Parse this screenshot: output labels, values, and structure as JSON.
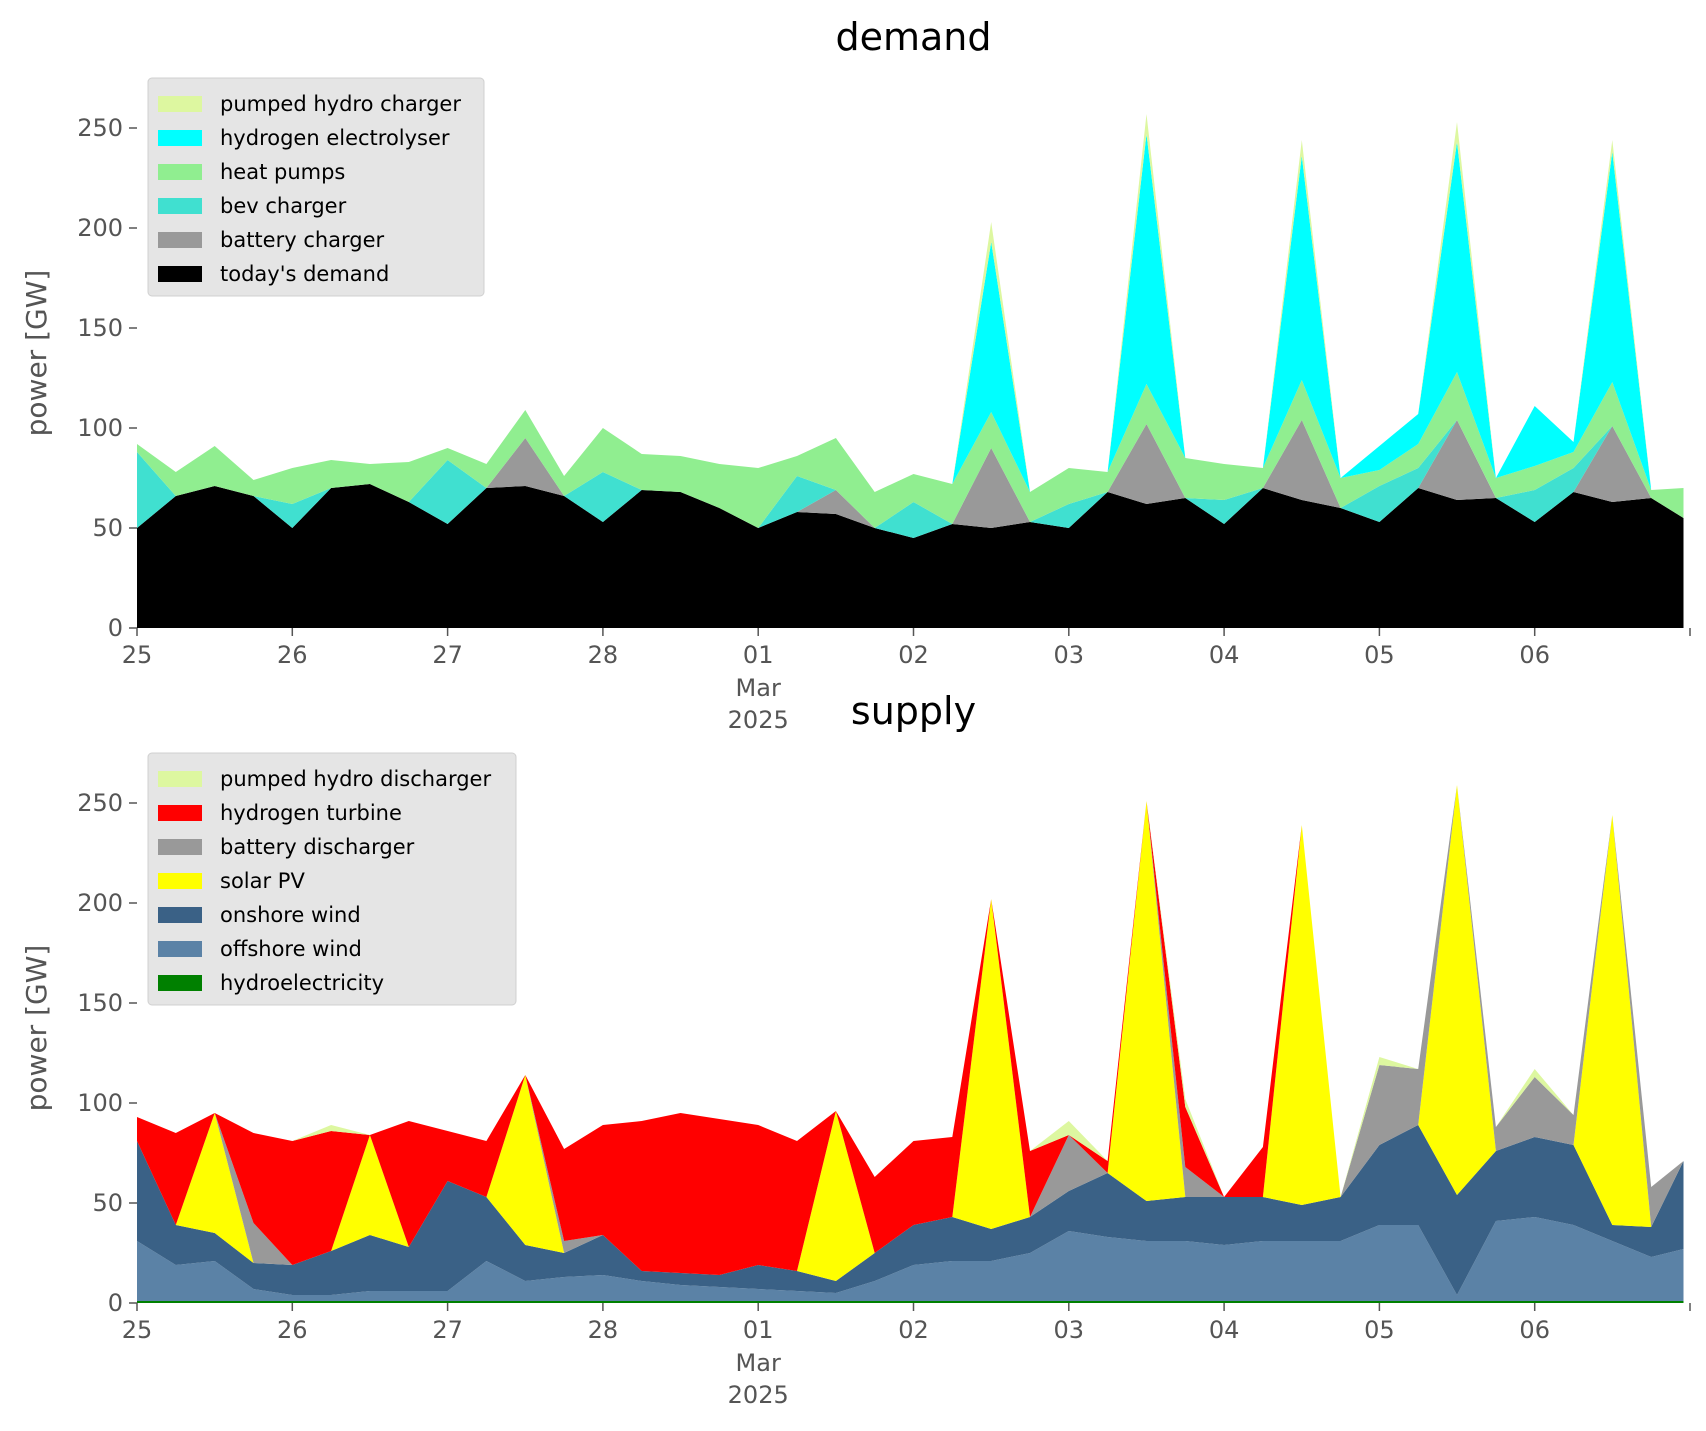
{
  "chart_data": [
    {
      "type": "area",
      "stacked": true,
      "title": "demand",
      "ylabel": "power [GW]",
      "xlabel": "",
      "ylim": [
        0,
        275
      ],
      "yticks": [
        0,
        50,
        100,
        150,
        200,
        250
      ],
      "xlim": [
        "2025-02-25",
        "2025-03-07"
      ],
      "xticks": [
        {
          "date": "2025-02-25",
          "label": "25"
        },
        {
          "date": "2025-02-26",
          "label": "26"
        },
        {
          "date": "2025-02-27",
          "label": "27"
        },
        {
          "date": "2025-02-28",
          "label": "28"
        },
        {
          "date": "2025-03-01",
          "label": "01",
          "sublabel": "Mar",
          "sublabel2": "2025"
        },
        {
          "date": "2025-03-02",
          "label": "02"
        },
        {
          "date": "2025-03-03",
          "label": "03"
        },
        {
          "date": "2025-03-04",
          "label": "04"
        },
        {
          "date": "2025-03-05",
          "label": "05"
        },
        {
          "date": "2025-03-06",
          "label": "06"
        }
      ],
      "legend_position": "top-left",
      "x": [
        "2025-02-25 00:00",
        "2025-02-25 06:00",
        "2025-02-25 12:00",
        "2025-02-25 18:00",
        "2025-02-26 00:00",
        "2025-02-26 06:00",
        "2025-02-26 12:00",
        "2025-02-26 18:00",
        "2025-02-27 00:00",
        "2025-02-27 06:00",
        "2025-02-27 12:00",
        "2025-02-27 18:00",
        "2025-02-28 00:00",
        "2025-02-28 06:00",
        "2025-02-28 12:00",
        "2025-02-28 18:00",
        "2025-03-01 00:00",
        "2025-03-01 06:00",
        "2025-03-01 12:00",
        "2025-03-01 18:00",
        "2025-03-02 00:00",
        "2025-03-02 06:00",
        "2025-03-02 12:00",
        "2025-03-02 18:00",
        "2025-03-03 00:00",
        "2025-03-03 06:00",
        "2025-03-03 12:00",
        "2025-03-03 18:00",
        "2025-03-04 00:00",
        "2025-03-04 06:00",
        "2025-03-04 12:00",
        "2025-03-04 18:00",
        "2025-03-05 00:00",
        "2025-03-05 06:00",
        "2025-03-05 12:00",
        "2025-03-05 18:00",
        "2025-03-06 00:00",
        "2025-03-06 06:00",
        "2025-03-06 12:00",
        "2025-03-06 18:00",
        "2025-03-06 23:00"
      ],
      "series": [
        {
          "name": "today's demand",
          "color": "#000000",
          "values": [
            50,
            66,
            71,
            66,
            50,
            70,
            72,
            63,
            52,
            70,
            71,
            66,
            53,
            69,
            68,
            60,
            50,
            58,
            57,
            50,
            45,
            52,
            50,
            53,
            50,
            68,
            62,
            65,
            52,
            70,
            64,
            60,
            53,
            70,
            64,
            65,
            53,
            68,
            63,
            65,
            55
          ]
        },
        {
          "name": "battery charger",
          "color": "#999999",
          "values": [
            0,
            0,
            0,
            0,
            0,
            0,
            0,
            0,
            0,
            0,
            24,
            0,
            0,
            0,
            0,
            0,
            0,
            0,
            12,
            0,
            0,
            0,
            40,
            0,
            0,
            0,
            40,
            0,
            0,
            0,
            40,
            0,
            0,
            0,
            40,
            0,
            0,
            0,
            38,
            0,
            0
          ]
        },
        {
          "name": "bev charger",
          "color": "#40e0d0",
          "values": [
            38,
            0,
            0,
            0,
            12,
            0,
            0,
            0,
            32,
            0,
            0,
            0,
            25,
            0,
            0,
            0,
            0,
            18,
            0,
            0,
            18,
            0,
            0,
            0,
            12,
            0,
            0,
            0,
            12,
            0,
            0,
            0,
            18,
            10,
            0,
            0,
            16,
            12,
            0,
            0,
            0
          ]
        },
        {
          "name": "heat pumps",
          "color": "#90ee90",
          "values": [
            4,
            12,
            20,
            8,
            18,
            14,
            10,
            20,
            6,
            12,
            14,
            10,
            22,
            18,
            18,
            22,
            30,
            10,
            26,
            18,
            14,
            20,
            18,
            15,
            18,
            10,
            20,
            20,
            18,
            10,
            20,
            15,
            8,
            12,
            24,
            10,
            12,
            8,
            22,
            4,
            15
          ]
        },
        {
          "name": "hydrogen electrolyser",
          "color": "#00ffff",
          "values": [
            0,
            0,
            0,
            0,
            0,
            0,
            0,
            0,
            0,
            0,
            0,
            0,
            0,
            0,
            0,
            0,
            0,
            0,
            0,
            0,
            0,
            0,
            85,
            0,
            0,
            0,
            125,
            0,
            0,
            0,
            112,
            0,
            12,
            15,
            115,
            0,
            30,
            5,
            115,
            0,
            0
          ]
        },
        {
          "name": "pumped hydro charger",
          "color": "#ddf7a0",
          "values": [
            0,
            0,
            0,
            0,
            0,
            0,
            0,
            0,
            0,
            0,
            0,
            0,
            0,
            0,
            0,
            0,
            0,
            0,
            0,
            0,
            0,
            0,
            10,
            0,
            0,
            0,
            10,
            0,
            0,
            0,
            8,
            0,
            0,
            0,
            10,
            0,
            0,
            0,
            6,
            0,
            0
          ]
        }
      ],
      "legend_order": [
        "pumped hydro charger",
        "hydrogen electrolyser",
        "heat pumps",
        "bev charger",
        "battery charger",
        "today's demand"
      ]
    },
    {
      "type": "area",
      "stacked": true,
      "title": "supply",
      "ylabel": "power [GW]",
      "xlabel": "",
      "ylim": [
        0,
        275
      ],
      "yticks": [
        0,
        50,
        100,
        150,
        200,
        250
      ],
      "xlim": [
        "2025-02-25",
        "2025-03-07"
      ],
      "xticks": [
        {
          "date": "2025-02-25",
          "label": "25"
        },
        {
          "date": "2025-02-26",
          "label": "26"
        },
        {
          "date": "2025-02-27",
          "label": "27"
        },
        {
          "date": "2025-02-28",
          "label": "28"
        },
        {
          "date": "2025-03-01",
          "label": "01",
          "sublabel": "Mar",
          "sublabel2": "2025"
        },
        {
          "date": "2025-03-02",
          "label": "02"
        },
        {
          "date": "2025-03-03",
          "label": "03"
        },
        {
          "date": "2025-03-04",
          "label": "04"
        },
        {
          "date": "2025-03-05",
          "label": "05"
        },
        {
          "date": "2025-03-06",
          "label": "06"
        }
      ],
      "legend_position": "top-left",
      "x": [
        "2025-02-25 00:00",
        "2025-02-25 06:00",
        "2025-02-25 12:00",
        "2025-02-25 18:00",
        "2025-02-26 00:00",
        "2025-02-26 06:00",
        "2025-02-26 12:00",
        "2025-02-26 18:00",
        "2025-02-27 00:00",
        "2025-02-27 06:00",
        "2025-02-27 12:00",
        "2025-02-27 18:00",
        "2025-02-28 00:00",
        "2025-02-28 06:00",
        "2025-02-28 12:00",
        "2025-02-28 18:00",
        "2025-03-01 00:00",
        "2025-03-01 06:00",
        "2025-03-01 12:00",
        "2025-03-01 18:00",
        "2025-03-02 00:00",
        "2025-03-02 06:00",
        "2025-03-02 12:00",
        "2025-03-02 18:00",
        "2025-03-03 00:00",
        "2025-03-03 06:00",
        "2025-03-03 12:00",
        "2025-03-03 18:00",
        "2025-03-04 00:00",
        "2025-03-04 06:00",
        "2025-03-04 12:00",
        "2025-03-04 18:00",
        "2025-03-05 00:00",
        "2025-03-05 06:00",
        "2025-03-05 12:00",
        "2025-03-05 18:00",
        "2025-03-06 00:00",
        "2025-03-06 06:00",
        "2025-03-06 12:00",
        "2025-03-06 18:00",
        "2025-03-06 23:00"
      ],
      "series": [
        {
          "name": "hydroelectricity",
          "color": "#008000",
          "values": [
            1,
            1,
            1,
            1,
            1,
            1,
            1,
            1,
            1,
            1,
            1,
            1,
            1,
            1,
            1,
            1,
            1,
            1,
            1,
            1,
            1,
            1,
            1,
            1,
            1,
            1,
            1,
            1,
            1,
            1,
            1,
            1,
            1,
            1,
            1,
            1,
            1,
            1,
            1,
            1,
            1
          ]
        },
        {
          "name": "offshore wind",
          "color": "#5b82a6",
          "values": [
            30,
            18,
            20,
            6,
            3,
            3,
            5,
            5,
            5,
            20,
            10,
            12,
            13,
            10,
            8,
            7,
            6,
            5,
            4,
            10,
            18,
            20,
            20,
            24,
            35,
            32,
            30,
            30,
            28,
            30,
            30,
            30,
            38,
            38,
            3,
            40,
            42,
            38,
            30,
            22,
            26
          ]
        },
        {
          "name": "onshore wind",
          "color": "#3a6186",
          "values": [
            50,
            20,
            14,
            13,
            15,
            22,
            28,
            22,
            55,
            32,
            18,
            12,
            20,
            5,
            6,
            6,
            12,
            10,
            6,
            14,
            20,
            22,
            16,
            18,
            20,
            32,
            20,
            22,
            24,
            22,
            18,
            22,
            40,
            50,
            50,
            35,
            40,
            40,
            8,
            15,
            44
          ]
        },
        {
          "name": "solar PV",
          "color": "#ffff00",
          "values": [
            0,
            0,
            60,
            0,
            0,
            0,
            50,
            0,
            0,
            0,
            85,
            0,
            0,
            0,
            0,
            0,
            0,
            0,
            85,
            0,
            0,
            0,
            165,
            0,
            0,
            0,
            200,
            0,
            0,
            0,
            190,
            0,
            0,
            0,
            205,
            0,
            0,
            0,
            205,
            0,
            0
          ]
        },
        {
          "name": "battery discharger",
          "color": "#999999",
          "values": [
            0,
            0,
            0,
            20,
            0,
            0,
            0,
            0,
            0,
            0,
            0,
            6,
            0,
            0,
            0,
            0,
            0,
            0,
            0,
            0,
            0,
            0,
            0,
            0,
            28,
            0,
            0,
            15,
            0,
            0,
            0,
            0,
            40,
            28,
            0,
            12,
            30,
            15,
            0,
            20,
            0
          ]
        },
        {
          "name": "hydrogen turbine",
          "color": "#ff0000",
          "values": [
            12,
            46,
            0,
            45,
            62,
            60,
            0,
            63,
            25,
            28,
            0,
            46,
            55,
            75,
            80,
            78,
            70,
            65,
            0,
            38,
            42,
            40,
            0,
            33,
            0,
            6,
            0,
            30,
            0,
            25,
            0,
            0,
            0,
            0,
            0,
            0,
            0,
            0,
            0,
            0,
            0
          ]
        },
        {
          "name": "pumped hydro discharger",
          "color": "#ddf7a0",
          "values": [
            0,
            0,
            0,
            0,
            0,
            3,
            0,
            0,
            0,
            0,
            0,
            0,
            0,
            0,
            0,
            0,
            0,
            0,
            0,
            0,
            0,
            0,
            0,
            0,
            7,
            0,
            0,
            4,
            0,
            0,
            0,
            0,
            4,
            0,
            0,
            0,
            4,
            0,
            0,
            0,
            0
          ]
        }
      ],
      "legend_order": [
        "pumped hydro discharger",
        "hydrogen turbine",
        "battery discharger",
        "solar PV",
        "onshore wind",
        "offshore wind",
        "hydroelectricity"
      ]
    }
  ]
}
